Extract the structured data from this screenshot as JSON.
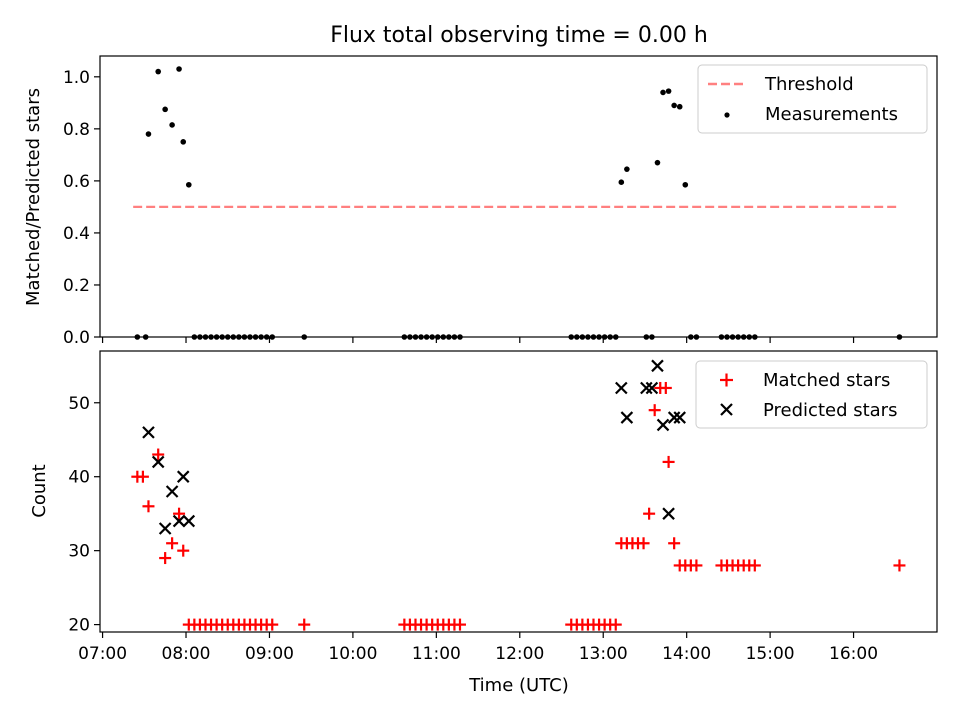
{
  "figure": {
    "title": "Flux total observing time = 0.00 h"
  },
  "chart_data": [
    {
      "type": "scatter",
      "ylabel": "Matched/Predicted stars",
      "xlim": [
        "07:00",
        "17:00"
      ],
      "ylim": [
        0,
        1.08
      ],
      "yticks": [
        0.0,
        0.2,
        0.4,
        0.6,
        0.8,
        1.0
      ],
      "ytick_labels": [
        "0.0",
        "0.2",
        "0.4",
        "0.6",
        "0.8",
        "1.0"
      ],
      "legend_position": "top-right",
      "series": [
        {
          "name": "Threshold",
          "kind": "dashed-line",
          "color": "#ff8080",
          "x": [
            "07:22",
            "16:32"
          ],
          "y": [
            0.5,
            0.5
          ]
        },
        {
          "name": "Measurements",
          "kind": "dot",
          "color": "#000000",
          "x": [
            "07:25",
            "07:31",
            "07:33",
            "07:40",
            "07:45",
            "07:50",
            "07:55",
            "07:58",
            "08:02",
            "08:06",
            "08:10",
            "08:14",
            "08:18",
            "08:22",
            "08:26",
            "08:30",
            "08:34",
            "08:38",
            "08:42",
            "08:46",
            "08:50",
            "08:54",
            "08:58",
            "09:02",
            "09:25",
            "10:37",
            "10:41",
            "10:45",
            "10:49",
            "10:53",
            "10:57",
            "11:01",
            "11:05",
            "11:09",
            "11:13",
            "11:17",
            "12:37",
            "12:41",
            "12:45",
            "12:49",
            "12:53",
            "12:57",
            "13:01",
            "13:05",
            "13:09",
            "13:13",
            "13:17",
            "13:31",
            "13:35",
            "13:39",
            "13:43",
            "13:47",
            "13:51",
            "13:55",
            "13:59",
            "14:03",
            "14:07",
            "14:25",
            "14:29",
            "14:33",
            "14:37",
            "14:41",
            "14:45",
            "14:49",
            "16:33"
          ],
          "y": [
            0.0,
            0.0,
            0.78,
            1.02,
            0.875,
            0.815,
            1.03,
            0.75,
            0.585,
            0.0,
            0.0,
            0.0,
            0.0,
            0.0,
            0.0,
            0.0,
            0.0,
            0.0,
            0.0,
            0.0,
            0.0,
            0.0,
            0.0,
            0.0,
            0.0,
            0.0,
            0.0,
            0.0,
            0.0,
            0.0,
            0.0,
            0.0,
            0.0,
            0.0,
            0.0,
            0.0,
            0.0,
            0.0,
            0.0,
            0.0,
            0.0,
            0.0,
            0.0,
            0.0,
            0.0,
            0.595,
            0.645,
            0.0,
            0.0,
            0.67,
            0.94,
            0.945,
            0.89,
            0.885,
            0.585,
            0.0,
            0.0,
            0.0,
            0.0,
            0.0,
            0.0,
            0.0,
            0.0,
            0.0,
            0.0
          ]
        }
      ]
    },
    {
      "type": "scatter",
      "xlabel": "Time (UTC)",
      "ylabel": "Count",
      "xlim": [
        "07:00",
        "17:00"
      ],
      "ylim": [
        19,
        57
      ],
      "xtick_labels": [
        "07:00",
        "08:00",
        "09:00",
        "10:00",
        "11:00",
        "12:00",
        "13:00",
        "14:00",
        "15:00",
        "16:00"
      ],
      "yticks": [
        20,
        30,
        40,
        50
      ],
      "ytick_labels": [
        "20",
        "30",
        "40",
        "50"
      ],
      "legend_position": "top-right",
      "series": [
        {
          "name": "Matched stars",
          "kind": "plus",
          "color": "#ff0000",
          "x": [
            "07:25",
            "07:29",
            "07:33",
            "07:40",
            "07:45",
            "07:50",
            "07:55",
            "07:58",
            "08:02",
            "08:06",
            "08:10",
            "08:14",
            "08:18",
            "08:22",
            "08:26",
            "08:30",
            "08:34",
            "08:38",
            "08:42",
            "08:46",
            "08:50",
            "08:54",
            "08:58",
            "09:02",
            "09:25",
            "10:37",
            "10:41",
            "10:45",
            "10:49",
            "10:53",
            "10:57",
            "11:01",
            "11:05",
            "11:09",
            "11:13",
            "11:17",
            "12:37",
            "12:41",
            "12:45",
            "12:49",
            "12:53",
            "12:57",
            "13:01",
            "13:05",
            "13:09",
            "13:13",
            "13:17",
            "13:21",
            "13:25",
            "13:29",
            "13:33",
            "13:37",
            "13:41",
            "13:45",
            "13:47",
            "13:51",
            "13:55",
            "13:59",
            "14:03",
            "14:07",
            "14:25",
            "14:29",
            "14:33",
            "14:37",
            "14:41",
            "14:45",
            "14:49",
            "16:33"
          ],
          "y": [
            40,
            40,
            36,
            43,
            29,
            31,
            35,
            30,
            20,
            20,
            20,
            20,
            20,
            20,
            20,
            20,
            20,
            20,
            20,
            20,
            20,
            20,
            20,
            20,
            20,
            20,
            20,
            20,
            20,
            20,
            20,
            20,
            20,
            20,
            20,
            20,
            20,
            20,
            20,
            20,
            20,
            20,
            20,
            20,
            20,
            31,
            31,
            31,
            31,
            31,
            35,
            49,
            52,
            52,
            42,
            31,
            28,
            28,
            28,
            28,
            28,
            28,
            28,
            28,
            28,
            28,
            28,
            28
          ]
        },
        {
          "name": "Predicted stars",
          "kind": "x",
          "color": "#000000",
          "x": [
            "07:33",
            "07:40",
            "07:45",
            "07:50",
            "07:55",
            "07:58",
            "08:02",
            "13:13",
            "13:17",
            "13:31",
            "13:35",
            "13:39",
            "13:43",
            "13:47",
            "13:51",
            "13:55"
          ],
          "y": [
            46,
            42,
            33,
            38,
            34,
            40,
            34,
            52,
            48,
            52,
            52,
            55,
            47,
            35,
            48,
            48
          ]
        }
      ]
    }
  ]
}
